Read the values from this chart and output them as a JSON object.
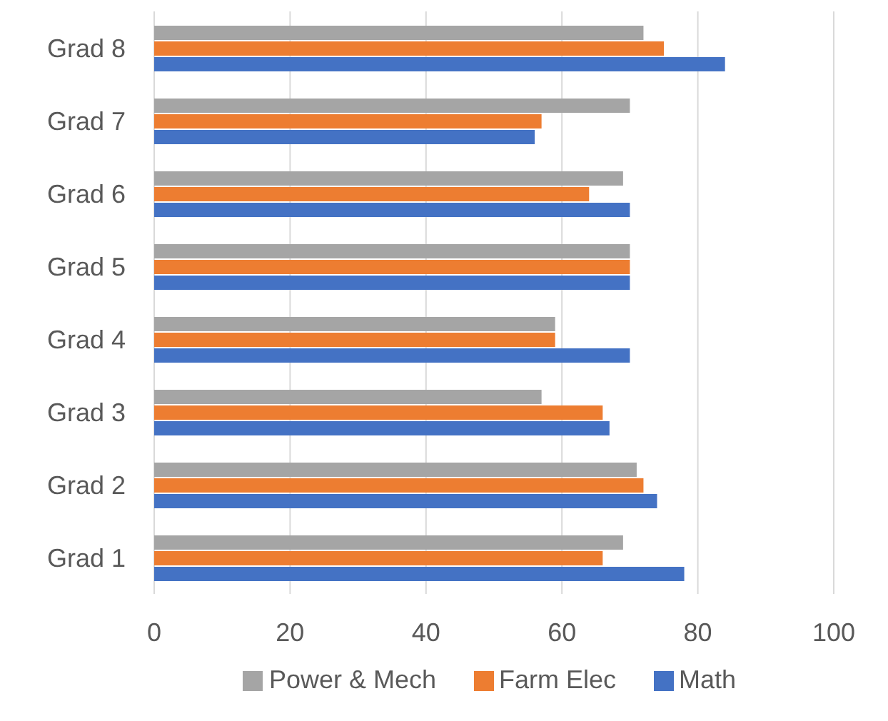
{
  "chart_data": {
    "type": "bar",
    "orientation": "horizontal",
    "categories": [
      "Grad 8",
      "Grad 7",
      "Grad 6",
      "Grad 5",
      "Grad 4",
      "Grad 3",
      "Grad 2",
      "Grad 1"
    ],
    "series": [
      {
        "name": "Power & Mech",
        "color": "#a5a5a5",
        "values": [
          72,
          70,
          69,
          70,
          59,
          57,
          71,
          69
        ]
      },
      {
        "name": "Farm Elec",
        "color": "#ed7d31",
        "values": [
          75,
          57,
          64,
          70,
          59,
          66,
          72,
          66
        ]
      },
      {
        "name": "Math",
        "color": "#4472c4",
        "values": [
          84,
          56,
          70,
          70,
          70,
          67,
          74,
          78
        ]
      }
    ],
    "xlim": [
      0,
      100
    ],
    "xticks": [
      0,
      20,
      40,
      60,
      80,
      100
    ],
    "grid": "x",
    "legend": "bottom"
  }
}
